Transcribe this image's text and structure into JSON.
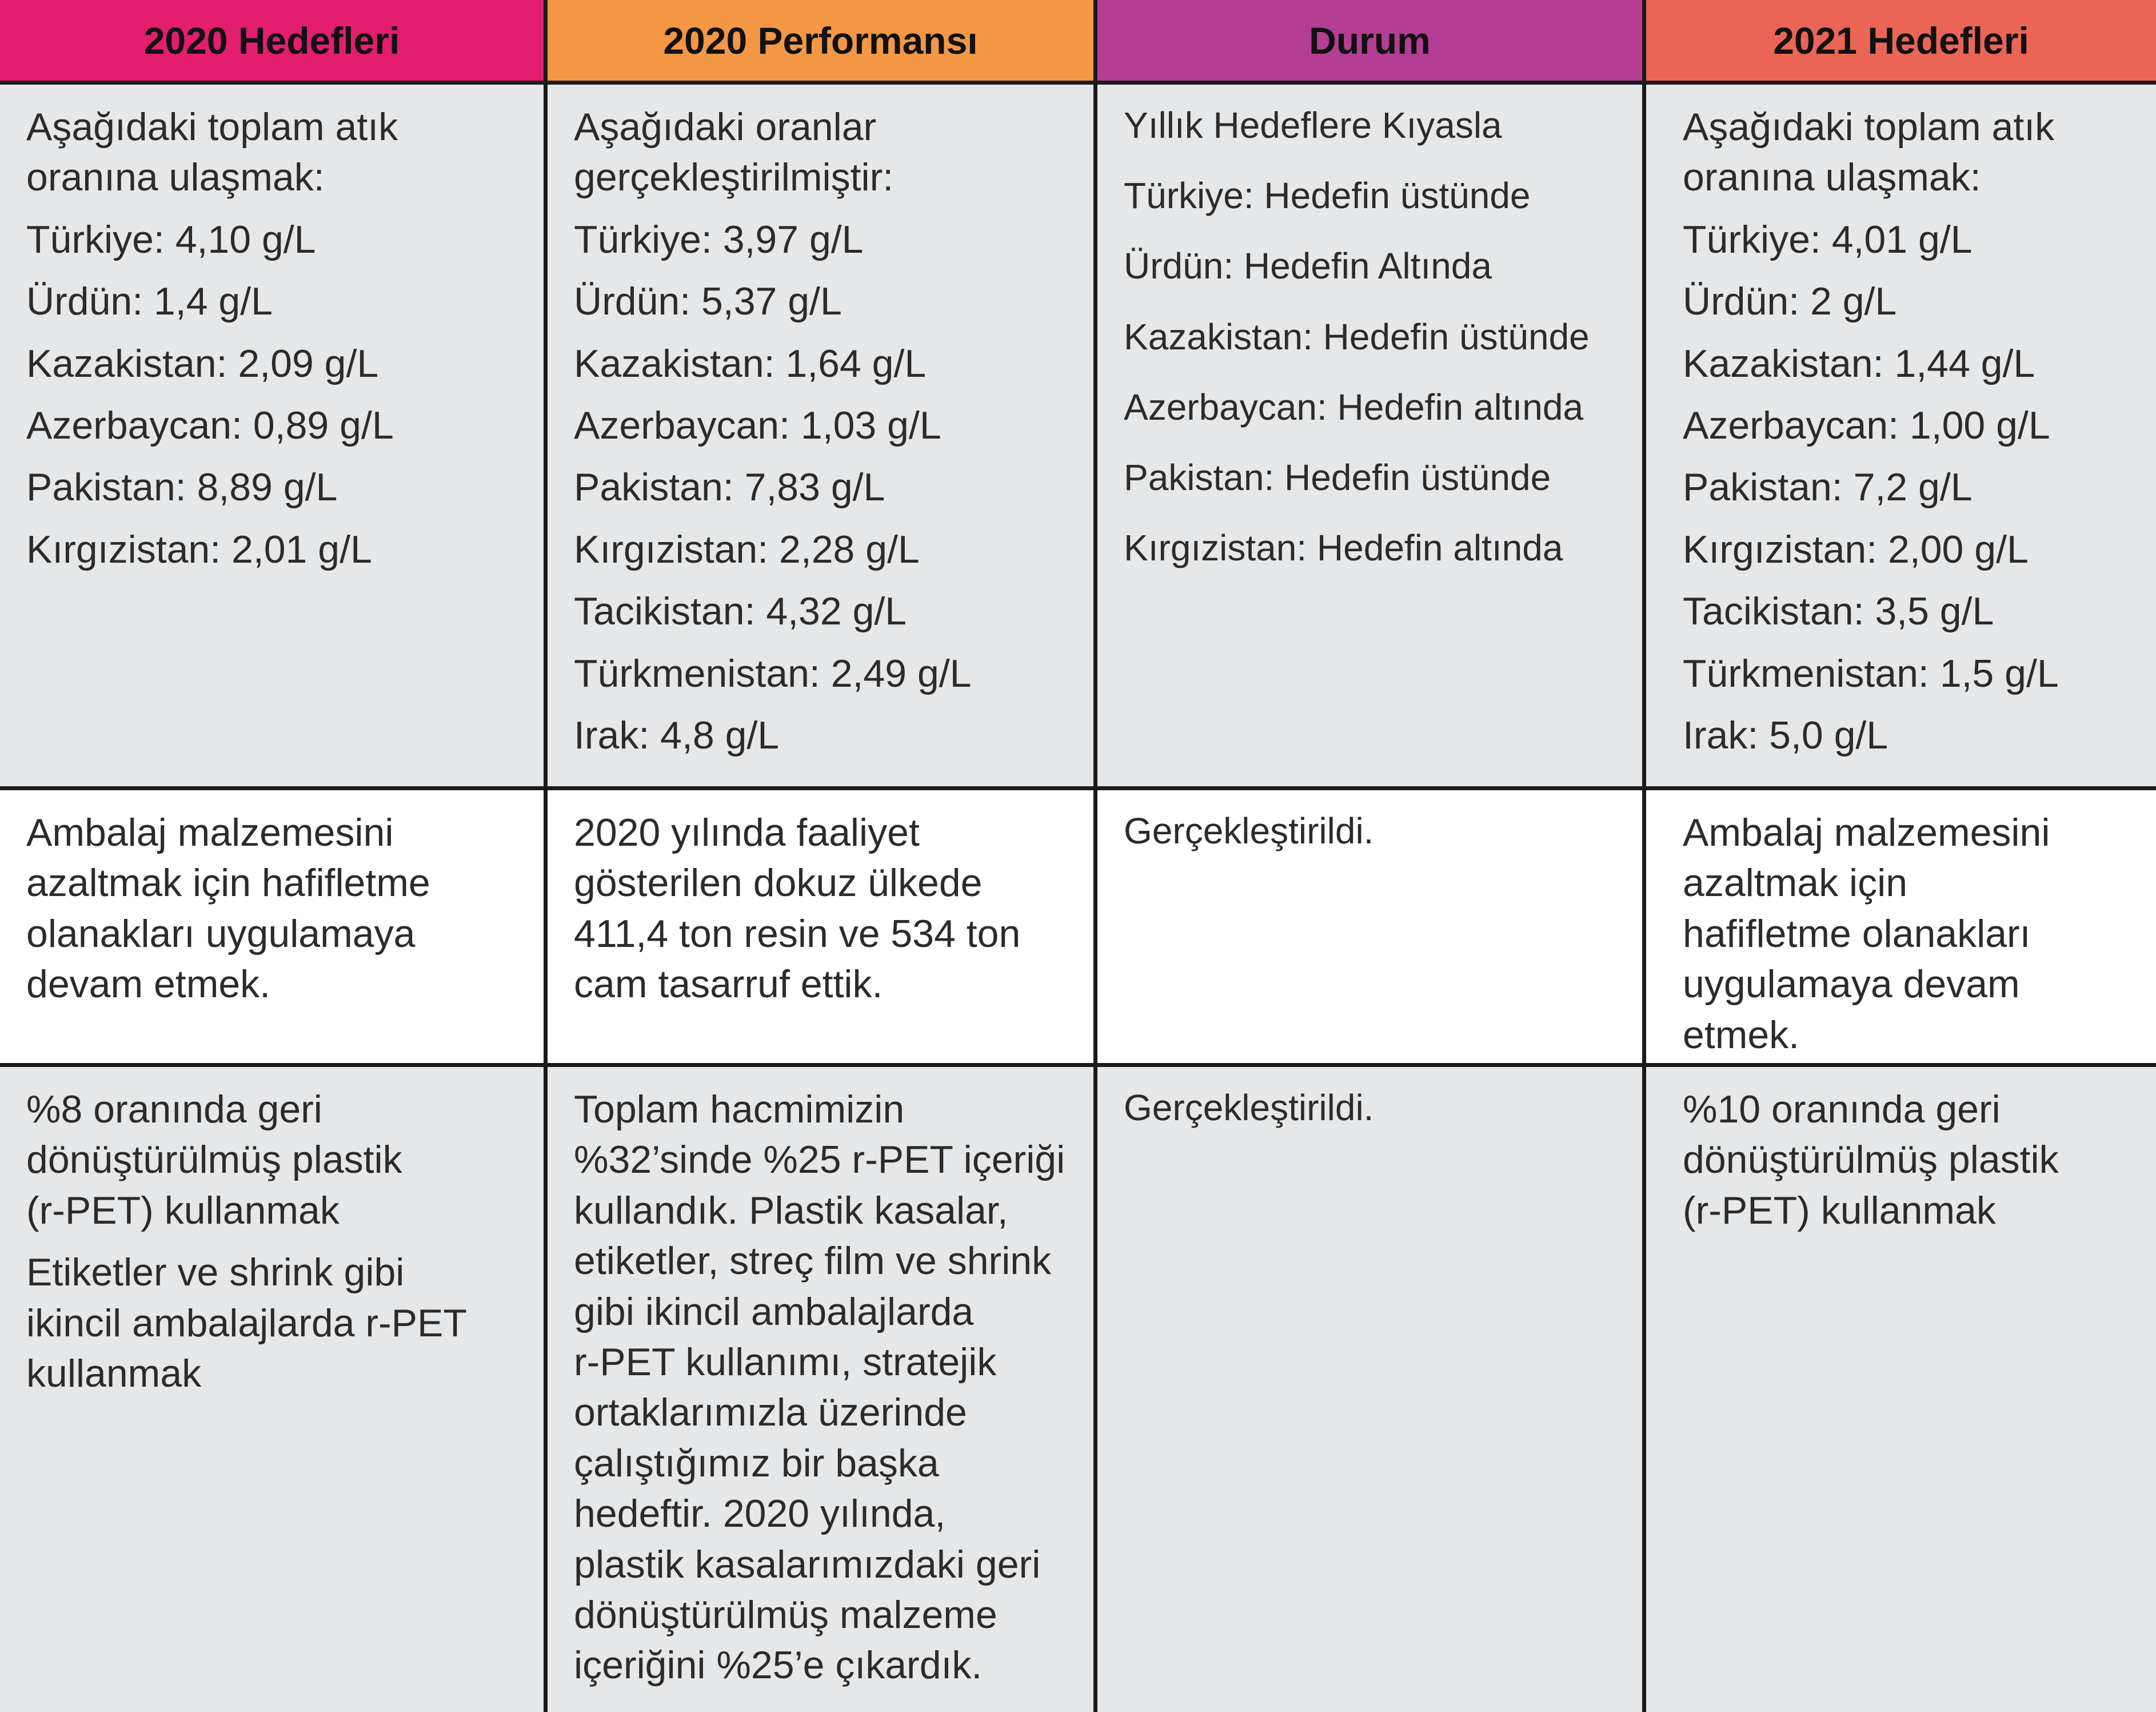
{
  "colors": {
    "header_2020_targets": "#e31e6e",
    "header_2020_performance": "#f39745",
    "header_status": "#b33e93",
    "header_2021_targets": "#ea6556",
    "cell_gray": "#e6e7e8",
    "grid_line": "#1a1a1a"
  },
  "headers": {
    "targets_2020": "2020 Hedefleri",
    "performance_2020": "2020 Performansı",
    "status": "Durum",
    "targets_2021": "2021 Hedefleri"
  },
  "rows": [
    {
      "targets_2020": {
        "intro": [
          "Aşağıdaki toplam atık",
          "oranına ulaşmak:"
        ],
        "items": [
          "Türkiye: 4,10 g/L",
          "Ürdün: 1,4 g/L",
          "Kazakistan: 2,09 g/L",
          "Azerbaycan: 0,89 g/L",
          "Pakistan: 8,89 g/L",
          "Kırgızistan: 2,01 g/L"
        ]
      },
      "performance_2020": {
        "intro": [
          "Aşağıdaki oranlar",
          "gerçekleştirilmiştir:"
        ],
        "items": [
          "Türkiye: 3,97 g/L",
          "Ürdün: 5,37 g/L",
          "Kazakistan: 1,64 g/L",
          "Azerbaycan: 1,03 g/L",
          "Pakistan: 7,83 g/L",
          "Kırgızistan: 2,28 g/L",
          "Tacikistan: 4,32 g/L",
          "Türkmenistan: 2,49 g/L",
          "Irak: 4,8 g/L"
        ]
      },
      "status": {
        "items": [
          "Yıllık Hedeflere Kıyasla",
          "Türkiye: Hedefin üstünde",
          "Ürdün: Hedefin Altında",
          "Kazakistan: Hedefin üstünde",
          "Azerbaycan: Hedefin altında",
          "Pakistan: Hedefin üstünde",
          "Kırgızistan: Hedefin altında"
        ]
      },
      "targets_2021": {
        "intro": [
          "Aşağıdaki toplam atık",
          "oranına ulaşmak:"
        ],
        "items": [
          "Türkiye: 4,01 g/L",
          "Ürdün: 2 g/L",
          "Kazakistan: 1,44 g/L",
          "Azerbaycan: 1,00 g/L",
          "Pakistan: 7,2 g/L",
          "Kırgızistan: 2,00 g/L",
          "Tacikistan: 3,5 g/L",
          "Türkmenistan: 1,5 g/L",
          "Irak: 5,0 g/L"
        ]
      }
    },
    {
      "targets_2020": [
        "Ambalaj malzemesini",
        "azaltmak için hafifletme",
        "olanakları uygulamaya",
        "devam etmek."
      ],
      "performance_2020": [
        "2020 yılında faaliyet",
        "gösterilen dokuz ülkede",
        "411,4 ton resin ve 534 ton",
        "cam tasarruf ettik."
      ],
      "status": "Gerçekleştirildi.",
      "targets_2021": [
        "Ambalaj malzemesini",
        "azaltmak için",
        "hafifletme olanakları",
        "uygulamaya devam",
        "etmek."
      ]
    },
    {
      "targets_2020_a": [
        "%8 oranında geri",
        "dönüştürülmüş plastik",
        "(r-PET) kullanmak"
      ],
      "targets_2020_b": [
        "Etiketler ve shrink gibi",
        "ikincil ambalajlarda r-PET",
        "kullanmak"
      ],
      "performance_2020": [
        "Toplam hacmimizin",
        "%32’sinde %25 r-PET içeriği",
        "kullandık. Plastik kasalar,",
        "etiketler, streç film ve shrink",
        "gibi ikincil ambalajlarda",
        "r-PET kullanımı, stratejik",
        "ortaklarımızla üzerinde",
        "çalıştığımız bir başka",
        "hedeftir. 2020 yılında,",
        "plastik kasalarımızdaki geri",
        "dönüştürülmüş malzeme",
        "içeriğini %25’e çıkardık."
      ],
      "status": "Gerçekleştirildi.",
      "targets_2021": [
        "%10 oranında geri",
        "dönüştürülmüş plastik",
        "(r-PET) kullanmak"
      ]
    }
  ]
}
